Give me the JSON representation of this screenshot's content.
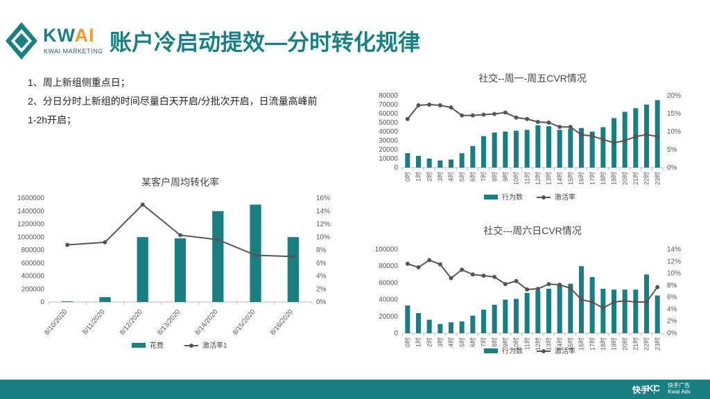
{
  "brand": {
    "name_main": "KW",
    "name_accent": "AI",
    "subtitle": "KWAI MARKETING",
    "colors": {
      "teal": "#1a7f82",
      "orange": "#f39a2b",
      "line": "#555555"
    }
  },
  "page_title": "账户冷启动提效—分时转化规律",
  "bullets": [
    "1、周上新组侧重点日；",
    "2、分日分时上新组的时间尽量白天开启/分批次开启，日流量高峰前",
    "1-2h开启；"
  ],
  "footer": {
    "brand": "快手",
    "ads_mark": "KC",
    "ads_cn": "快手广告",
    "ads_en": "Kwai Ads"
  },
  "chart_data": [
    {
      "type": "bar+line",
      "title": "某客户周均转化率",
      "categories": [
        "8/10/2020",
        "8/11/2020",
        "8/12/2020",
        "8/13/2020",
        "8/14/2020",
        "8/15/2020",
        "8/16/2020"
      ],
      "series": [
        {
          "name": "花费",
          "type": "bar",
          "axis": "left",
          "values": [
            10000,
            75000,
            1000000,
            980000,
            1400000,
            1500000,
            1000000
          ]
        },
        {
          "name": "激活率1",
          "type": "line",
          "axis": "right",
          "values": [
            8.8,
            9.2,
            15.0,
            10.3,
            9.6,
            7.2,
            7.0
          ]
        }
      ],
      "left_axis": {
        "ylim": [
          0,
          1600000
        ],
        "ticks": [
          "0",
          "200000",
          "400000",
          "600000",
          "800000",
          "1000000",
          "1200000",
          "1400000",
          "1600000"
        ]
      },
      "right_axis": {
        "ylim": [
          0,
          16
        ],
        "ticks": [
          "0%",
          "2%",
          "4%",
          "6%",
          "8%",
          "10%",
          "12%",
          "14%",
          "16%"
        ]
      },
      "legend": "bottom"
    },
    {
      "type": "bar+line",
      "title": "社交--周一-周五CVR情况",
      "categories": [
        "0时",
        "1时",
        "2时",
        "3时",
        "4时",
        "5时",
        "6时",
        "7时",
        "8时",
        "9时",
        "10时",
        "11时",
        "12时",
        "13时",
        "14时",
        "15时",
        "16时",
        "17时",
        "18时",
        "19时",
        "20时",
        "21时",
        "22时",
        "23时"
      ],
      "series": [
        {
          "name": "行为数",
          "type": "bar",
          "axis": "left",
          "values": [
            16000,
            13000,
            10000,
            8000,
            9000,
            16000,
            24000,
            35000,
            39000,
            40000,
            41000,
            42000,
            47000,
            46000,
            42000,
            43000,
            44000,
            40000,
            45000,
            55000,
            62000,
            66000,
            70000,
            75000
          ]
        },
        {
          "name": "激活率",
          "type": "line",
          "axis": "right",
          "values": [
            13.5,
            17.3,
            17.5,
            17.3,
            16.7,
            14.5,
            14.5,
            14.7,
            14.9,
            15.3,
            13.9,
            13.5,
            12.7,
            12.5,
            11.3,
            11.3,
            9.1,
            8.8,
            7.8,
            6.9,
            7.5,
            8.6,
            9.2,
            8.6
          ]
        }
      ],
      "left_axis": {
        "ylim": [
          0,
          80000
        ],
        "ticks": [
          "0",
          "10000",
          "20000",
          "30000",
          "40000",
          "50000",
          "60000",
          "70000",
          "80000"
        ]
      },
      "right_axis": {
        "ylim": [
          0,
          20
        ],
        "ticks": [
          "0%",
          "5%",
          "10%",
          "15%",
          "20%"
        ]
      },
      "legend": "bottom"
    },
    {
      "type": "bar+line",
      "title": "社交---周六日CVR情况",
      "categories": [
        "0时",
        "1时",
        "2时",
        "3时",
        "4时",
        "5时",
        "6时",
        "7时",
        "8时",
        "9时",
        "10时",
        "11时",
        "12时",
        "13时",
        "14时",
        "15时",
        "16时",
        "17时",
        "18时",
        "19时",
        "20时",
        "21时",
        "22时",
        "23时"
      ],
      "series": [
        {
          "name": "行为数",
          "type": "bar",
          "axis": "left",
          "values": [
            33000,
            24000,
            16000,
            11000,
            13000,
            14000,
            21000,
            28000,
            34000,
            40000,
            41000,
            48000,
            51000,
            53000,
            57000,
            59000,
            80000,
            67000,
            53000,
            52000,
            52000,
            52000,
            70000,
            45000
          ]
        },
        {
          "name": "激活率",
          "type": "line",
          "axis": "right",
          "values": [
            11.6,
            11.0,
            12.2,
            11.5,
            9.2,
            10.6,
            9.8,
            9.6,
            9.4,
            8.2,
            8.7,
            7.3,
            7.4,
            8.2,
            8.1,
            7.5,
            5.6,
            5.2,
            4.2,
            5.2,
            5.4,
            5.2,
            5.2,
            7.7
          ]
        }
      ],
      "left_axis": {
        "ylim": [
          0,
          100000
        ],
        "ticks": [
          "0",
          "20000",
          "40000",
          "60000",
          "80000",
          "100000"
        ]
      },
      "right_axis": {
        "ylim": [
          0,
          14
        ],
        "ticks": [
          "0%",
          "2%",
          "4%",
          "6%",
          "8%",
          "10%",
          "12%",
          "14%"
        ]
      },
      "legend": "bottom"
    }
  ]
}
